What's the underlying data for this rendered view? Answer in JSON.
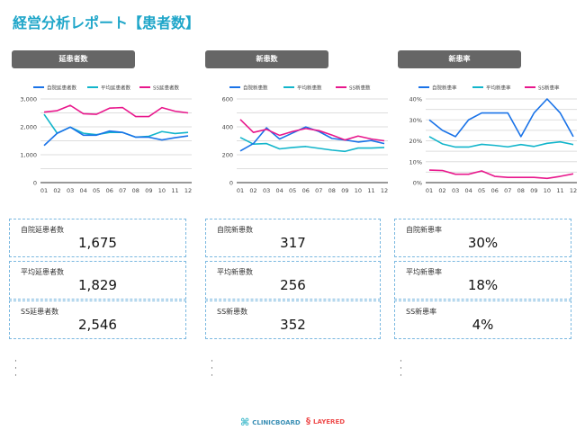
{
  "title": "経営分析レポート【患者数】",
  "colors": {
    "self": "#1a73e8",
    "avg": "#12b5cb",
    "ss": "#e8178c",
    "accent": "#1fa6c9"
  },
  "columns": [
    {
      "header": "延患者数",
      "chart": {
        "type": "line",
        "categories": [
          "01",
          "02",
          "03",
          "04",
          "05",
          "06",
          "07",
          "08",
          "09",
          "10",
          "11",
          "12"
        ],
        "ylim": [
          0,
          3000
        ],
        "yticks": [
          "0",
          "1,000",
          "2,000",
          "3,000"
        ],
        "ytick_values": [
          0,
          1000,
          2000,
          3000
        ],
        "series": [
          {
            "name": "自院延患者数",
            "values": [
              1330,
              1770,
              1990,
              1700,
              1700,
              1850,
              1800,
              1630,
              1630,
              1530,
              1610,
              1675
            ]
          },
          {
            "name": "平均延患者数",
            "values": [
              2450,
              1770,
              1990,
              1770,
              1720,
              1800,
              1800,
              1630,
              1660,
              1830,
              1760,
              1800
            ]
          },
          {
            "name": "SS延患者数",
            "values": [
              2530,
              2580,
              2770,
              2470,
              2450,
              2670,
              2690,
              2370,
              2370,
              2690,
              2560,
              2500
            ]
          }
        ]
      },
      "cards": [
        {
          "label": "自院延患者数",
          "value": "1,675"
        },
        {
          "label": "平均延患者数",
          "value": "1,829"
        },
        {
          "label": "SS延患者数",
          "value": "2,546"
        }
      ]
    },
    {
      "header": "新患数",
      "chart": {
        "type": "line",
        "categories": [
          "01",
          "02",
          "03",
          "04",
          "05",
          "06",
          "07",
          "08",
          "09",
          "10",
          "11",
          "12"
        ],
        "ylim": [
          0,
          600
        ],
        "yticks": [
          "0",
          "200",
          "400",
          "600"
        ],
        "ytick_values": [
          0,
          200,
          400,
          600
        ],
        "series": [
          {
            "name": "自院新患数",
            "values": [
              227,
              280,
              393,
              313,
              356,
              399,
              367,
              317,
              306,
              291,
              302,
              280
            ]
          },
          {
            "name": "平均新患数",
            "values": [
              324,
              276,
              280,
              242,
              252,
              259,
              246,
              233,
              224,
              248,
              248,
              252
            ]
          },
          {
            "name": "SS新患数",
            "values": [
              453,
              360,
              382,
              339,
              367,
              388,
              373,
              341,
              306,
              334,
              313,
              300
            ]
          }
        ]
      },
      "cards": [
        {
          "label": "自院新患数",
          "value": "317"
        },
        {
          "label": "平均新患数",
          "value": "256"
        },
        {
          "label": "SS新患数",
          "value": "352"
        }
      ]
    },
    {
      "header": "新患率",
      "chart": {
        "type": "line",
        "categories": [
          "01",
          "02",
          "03",
          "04",
          "05",
          "06",
          "07",
          "08",
          "09",
          "10",
          "11",
          "12"
        ],
        "ylim": [
          0,
          40
        ],
        "yticks": [
          "0%",
          "10%",
          "20%",
          "30%",
          "40%"
        ],
        "ytick_values": [
          0,
          10,
          20,
          30,
          40
        ],
        "series": [
          {
            "name": "自院新患率",
            "values": [
              30,
              25,
              22,
              30,
              33.3,
              33.3,
              33.3,
              22,
              33.3,
              40,
              33.3,
              22
            ]
          },
          {
            "name": "平均新患率",
            "values": [
              22,
              18.5,
              17,
              17,
              18.3,
              17.8,
              17.1,
              18.2,
              17.3,
              18.8,
              19.5,
              18.2
            ]
          },
          {
            "name": "SS新患率",
            "values": [
              6,
              5.8,
              4,
              4,
              5.6,
              3,
              2.5,
              2.5,
              2.5,
              2,
              3,
              4.2
            ]
          }
        ]
      },
      "cards": [
        {
          "label": "自院新患率",
          "value": "30%"
        },
        {
          "label": "平均新患率",
          "value": "18%"
        },
        {
          "label": "SS新患率",
          "value": "4%"
        }
      ]
    }
  ],
  "logos": {
    "clinicboard": "CLINICBOARD",
    "layered": "LAYERED"
  }
}
